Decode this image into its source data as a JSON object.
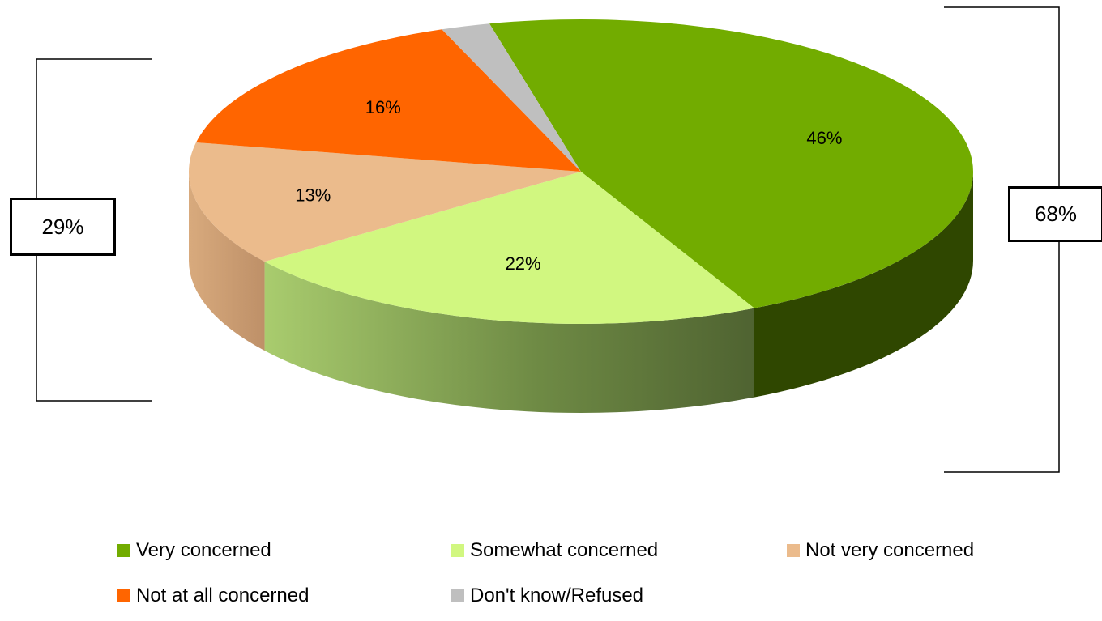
{
  "chart_data": {
    "type": "pie",
    "style": "3d",
    "title": "",
    "slices": [
      {
        "label": "Very concerned",
        "value": 46,
        "display": "46%",
        "color": "#72AC00",
        "side_color": "#2F4700"
      },
      {
        "label": "Somewhat concerned",
        "value": 22,
        "display": "22%",
        "color": "#D1F780",
        "side_color": "#7E9A4F"
      },
      {
        "label": "Not very concerned",
        "value": 13,
        "display": "13%",
        "color": "#EBBB8C",
        "side_color": "#C99C70"
      },
      {
        "label": "Not at all concerned",
        "value": 16,
        "display": "16%",
        "color": "#FF6500",
        "side_color": "#B34700"
      },
      {
        "label": "Don't know/Refused",
        "value": 2,
        "display": "2%",
        "color": "#BFBFBF",
        "side_color": "#8C8C8C"
      }
    ],
    "brackets": [
      {
        "label": "29%",
        "groups": [
          "Not very concerned",
          "Not at all concerned"
        ],
        "side": "left"
      },
      {
        "label": "68%",
        "groups": [
          "Very concerned",
          "Somewhat concerned"
        ],
        "side": "right"
      }
    ],
    "legend": {
      "position": "bottom",
      "items": [
        "Very concerned",
        "Somewhat concerned",
        "Not very concerned",
        "Not at all concerned",
        "Don't know/Refused"
      ]
    }
  }
}
